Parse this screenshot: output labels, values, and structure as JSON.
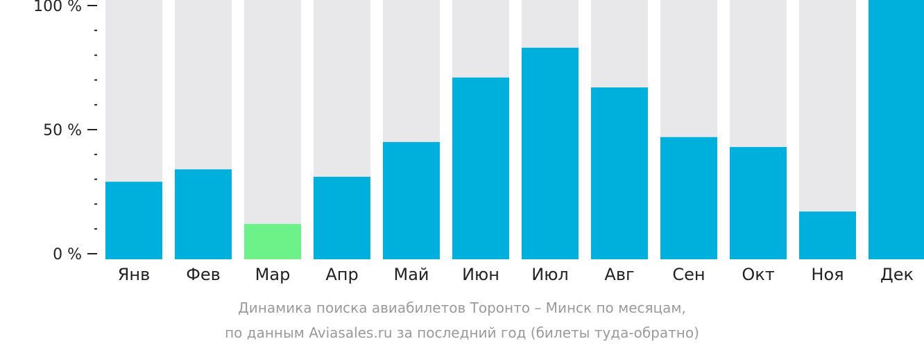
{
  "chart_data": {
    "type": "bar",
    "categories": [
      "Янв",
      "Фев",
      "Мар",
      "Апр",
      "Май",
      "Июн",
      "Июл",
      "Авг",
      "Сен",
      "Окт",
      "Ноя",
      "Дек"
    ],
    "values": [
      29,
      34,
      12,
      31,
      45,
      71,
      83,
      67,
      47,
      43,
      17,
      100
    ],
    "ylim": [
      0,
      100
    ],
    "y_ticks": [
      {
        "value": 0,
        "label": "0 %"
      },
      {
        "value": 50,
        "label": "50 %"
      },
      {
        "value": 100,
        "label": "100 %"
      }
    ],
    "minor_tick_step": 10,
    "highlight_index": 2,
    "colors": {
      "bar": "#00b0dc",
      "highlight": "#6cf288",
      "background": "#e8e8ea",
      "axis": "#222222"
    },
    "grid": false,
    "legend": "none"
  },
  "caption": {
    "line1": "Динамика поиска авиабилетов Торонто – Минск по месяцам,",
    "line2": "по данным Aviasales.ru за последний год (билеты туда-обратно)"
  }
}
